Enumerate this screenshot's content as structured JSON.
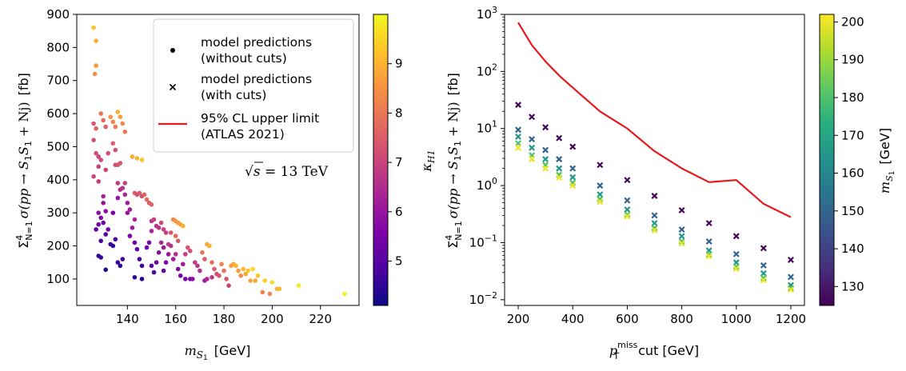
{
  "chart_data": [
    {
      "type": "scatter",
      "xlabel": "m_{S1}  [GeV]",
      "xlabel_parts": {
        "main": "m",
        "sub": "S",
        "subsub": "1",
        "unit": "[GeV]"
      },
      "ylabel": "Σ⁴_{N=1} σ(pp → S1S1 + Nj)  [fb]",
      "ylabel_parts": {
        "sigma": "Σ",
        "sup": "4",
        "sub": "N=1",
        "body": "σ(pp → S",
        "one": "1",
        "S": "S",
        "tail": " + Nj)",
        "unit": "[fb]"
      },
      "xlim": [
        119,
        236
      ],
      "ylim": [
        20,
        900
      ],
      "xticks": [
        140,
        160,
        180,
        200,
        220
      ],
      "yticks": [
        100,
        200,
        300,
        400,
        500,
        600,
        700,
        800,
        900
      ],
      "colorbar": {
        "label": "κH1",
        "label_main": "κ",
        "label_sub": "H1",
        "range": [
          4.1,
          10.0
        ],
        "ticks": [
          5,
          6,
          7,
          8,
          9
        ],
        "colormap": "plasma"
      },
      "annotation": {
        "root": "√",
        "s": "s",
        "rest": " = 13 TeV"
      },
      "legend": {
        "position": "top-right",
        "entries": [
          {
            "marker": "dot",
            "line1": "model predictions",
            "line2": "(without cuts)"
          },
          {
            "marker": "cross",
            "line1": "model predictions",
            "line2": "(with cuts)"
          },
          {
            "marker": "line",
            "color": "#e41a1c",
            "line1": "95% CL upper limit",
            "line2": "(ATLAS 2021)"
          }
        ]
      },
      "points": [
        {
          "x": 126,
          "y": 860,
          "k": 9.2
        },
        {
          "x": 127,
          "y": 820,
          "k": 9.0
        },
        {
          "x": 127,
          "y": 745,
          "k": 8.6
        },
        {
          "x": 126.5,
          "y": 720,
          "k": 8.4
        },
        {
          "x": 126,
          "y": 570,
          "k": 7.4
        },
        {
          "x": 127,
          "y": 555,
          "k": 7.6
        },
        {
          "x": 126,
          "y": 520,
          "k": 7.3
        },
        {
          "x": 127,
          "y": 480,
          "k": 7.2
        },
        {
          "x": 128,
          "y": 470,
          "k": 7.0
        },
        {
          "x": 129,
          "y": 600,
          "k": 8.0
        },
        {
          "x": 130,
          "y": 580,
          "k": 7.8
        },
        {
          "x": 131,
          "y": 560,
          "k": 7.5
        },
        {
          "x": 129,
          "y": 460,
          "k": 7.1
        },
        {
          "x": 128,
          "y": 440,
          "k": 6.9
        },
        {
          "x": 126,
          "y": 410,
          "k": 7.0
        },
        {
          "x": 128,
          "y": 395,
          "k": 6.8
        },
        {
          "x": 131,
          "y": 430,
          "k": 7.0
        },
        {
          "x": 133,
          "y": 590,
          "k": 8.5
        },
        {
          "x": 134,
          "y": 575,
          "k": 8.3
        },
        {
          "x": 135,
          "y": 560,
          "k": 8.1
        },
        {
          "x": 136,
          "y": 605,
          "k": 8.9
        },
        {
          "x": 137,
          "y": 590,
          "k": 8.6
        },
        {
          "x": 138,
          "y": 570,
          "k": 8.3
        },
        {
          "x": 139,
          "y": 545,
          "k": 8.0
        },
        {
          "x": 134,
          "y": 510,
          "k": 7.5
        },
        {
          "x": 135,
          "y": 490,
          "k": 7.3
        },
        {
          "x": 132,
          "y": 480,
          "k": 7.2
        },
        {
          "x": 130,
          "y": 350,
          "k": 6.3
        },
        {
          "x": 130,
          "y": 330,
          "k": 6.0
        },
        {
          "x": 131,
          "y": 305,
          "k": 5.9
        },
        {
          "x": 128,
          "y": 300,
          "k": 5.8
        },
        {
          "x": 129,
          "y": 285,
          "k": 5.5
        },
        {
          "x": 128,
          "y": 265,
          "k": 5.3
        },
        {
          "x": 127,
          "y": 250,
          "k": 5.2
        },
        {
          "x": 130,
          "y": 270,
          "k": 5.4
        },
        {
          "x": 129,
          "y": 215,
          "k": 4.8
        },
        {
          "x": 131,
          "y": 235,
          "k": 5.0
        },
        {
          "x": 132,
          "y": 250,
          "k": 5.4
        },
        {
          "x": 128,
          "y": 170,
          "k": 4.5
        },
        {
          "x": 129,
          "y": 165,
          "k": 4.6
        },
        {
          "x": 131,
          "y": 128,
          "k": 4.3
        },
        {
          "x": 133,
          "y": 205,
          "k": 4.7
        },
        {
          "x": 134,
          "y": 200,
          "k": 4.5
        },
        {
          "x": 135,
          "y": 220,
          "k": 4.9
        },
        {
          "x": 136,
          "y": 150,
          "k": 4.6
        },
        {
          "x": 137,
          "y": 140,
          "k": 4.4
        },
        {
          "x": 138,
          "y": 160,
          "k": 4.7
        },
        {
          "x": 134,
          "y": 300,
          "k": 5.5
        },
        {
          "x": 136,
          "y": 345,
          "k": 6.0
        },
        {
          "x": 135,
          "y": 445,
          "k": 7.2
        },
        {
          "x": 136,
          "y": 445,
          "k": 7.3
        },
        {
          "x": 137,
          "y": 450,
          "k": 7.4
        },
        {
          "x": 136,
          "y": 390,
          "k": 6.8
        },
        {
          "x": 137,
          "y": 370,
          "k": 6.5
        },
        {
          "x": 138,
          "y": 375,
          "k": 6.6
        },
        {
          "x": 139,
          "y": 390,
          "k": 6.9
        },
        {
          "x": 139,
          "y": 355,
          "k": 6.4
        },
        {
          "x": 140,
          "y": 330,
          "k": 6.1
        },
        {
          "x": 140,
          "y": 300,
          "k": 6.0
        },
        {
          "x": 141,
          "y": 310,
          "k": 6.2
        },
        {
          "x": 142,
          "y": 470,
          "k": 8.8
        },
        {
          "x": 144,
          "y": 465,
          "k": 9.0
        },
        {
          "x": 143,
          "y": 360,
          "k": 7.5
        },
        {
          "x": 144,
          "y": 355,
          "k": 7.3
        },
        {
          "x": 145,
          "y": 360,
          "k": 7.4
        },
        {
          "x": 146,
          "y": 350,
          "k": 7.3
        },
        {
          "x": 147,
          "y": 355,
          "k": 7.6
        },
        {
          "x": 148,
          "y": 340,
          "k": 7.7
        },
        {
          "x": 149,
          "y": 330,
          "k": 7.5
        },
        {
          "x": 150,
          "y": 325,
          "k": 7.6
        },
        {
          "x": 146,
          "y": 460,
          "k": 9.3
        },
        {
          "x": 143,
          "y": 280,
          "k": 6.4
        },
        {
          "x": 142,
          "y": 255,
          "k": 6.1
        },
        {
          "x": 141,
          "y": 230,
          "k": 5.6
        },
        {
          "x": 143,
          "y": 210,
          "k": 5.3
        },
        {
          "x": 144,
          "y": 190,
          "k": 5.1
        },
        {
          "x": 145,
          "y": 160,
          "k": 4.9
        },
        {
          "x": 146,
          "y": 140,
          "k": 4.6
        },
        {
          "x": 143,
          "y": 105,
          "k": 4.5
        },
        {
          "x": 146,
          "y": 100,
          "k": 4.4
        },
        {
          "x": 148,
          "y": 195,
          "k": 5.4
        },
        {
          "x": 149,
          "y": 210,
          "k": 5.6
        },
        {
          "x": 150,
          "y": 245,
          "k": 6.3
        },
        {
          "x": 150,
          "y": 275,
          "k": 6.7
        },
        {
          "x": 151,
          "y": 280,
          "k": 6.9
        },
        {
          "x": 152,
          "y": 260,
          "k": 6.6
        },
        {
          "x": 153,
          "y": 255,
          "k": 6.7
        },
        {
          "x": 154,
          "y": 270,
          "k": 7.2
        },
        {
          "x": 155,
          "y": 250,
          "k": 7.0
        },
        {
          "x": 156,
          "y": 240,
          "k": 6.9
        },
        {
          "x": 154,
          "y": 210,
          "k": 6.4
        },
        {
          "x": 155,
          "y": 195,
          "k": 6.1
        },
        {
          "x": 153,
          "y": 180,
          "k": 5.8
        },
        {
          "x": 152,
          "y": 150,
          "k": 5.3
        },
        {
          "x": 151,
          "y": 120,
          "k": 4.9
        },
        {
          "x": 150,
          "y": 140,
          "k": 5.0
        },
        {
          "x": 155,
          "y": 125,
          "k": 5.1
        },
        {
          "x": 156,
          "y": 150,
          "k": 5.6
        },
        {
          "x": 157,
          "y": 175,
          "k": 6.0
        },
        {
          "x": 157,
          "y": 205,
          "k": 6.7
        },
        {
          "x": 158,
          "y": 200,
          "k": 6.6
        },
        {
          "x": 158,
          "y": 240,
          "k": 7.4
        },
        {
          "x": 159,
          "y": 280,
          "k": 8.3
        },
        {
          "x": 160,
          "y": 275,
          "k": 8.5
        },
        {
          "x": 161,
          "y": 270,
          "k": 8.6
        },
        {
          "x": 162,
          "y": 265,
          "k": 8.7
        },
        {
          "x": 163,
          "y": 260,
          "k": 9.0
        },
        {
          "x": 160,
          "y": 230,
          "k": 7.8
        },
        {
          "x": 161,
          "y": 215,
          "k": 7.4
        },
        {
          "x": 160,
          "y": 175,
          "k": 6.5
        },
        {
          "x": 159,
          "y": 160,
          "k": 6.2
        },
        {
          "x": 161,
          "y": 130,
          "k": 5.7
        },
        {
          "x": 162,
          "y": 110,
          "k": 5.4
        },
        {
          "x": 163,
          "y": 145,
          "k": 6.1
        },
        {
          "x": 164,
          "y": 175,
          "k": 6.8
        },
        {
          "x": 165,
          "y": 195,
          "k": 7.3
        },
        {
          "x": 166,
          "y": 185,
          "k": 7.2
        },
        {
          "x": 164,
          "y": 100,
          "k": 5.5
        },
        {
          "x": 166,
          "y": 100,
          "k": 5.6
        },
        {
          "x": 167,
          "y": 100,
          "k": 5.8
        },
        {
          "x": 168,
          "y": 150,
          "k": 6.8
        },
        {
          "x": 169,
          "y": 140,
          "k": 6.7
        },
        {
          "x": 170,
          "y": 125,
          "k": 6.5
        },
        {
          "x": 171,
          "y": 180,
          "k": 7.9
        },
        {
          "x": 172,
          "y": 160,
          "k": 7.5
        },
        {
          "x": 173,
          "y": 205,
          "k": 8.8
        },
        {
          "x": 174,
          "y": 200,
          "k": 9.0
        },
        {
          "x": 172,
          "y": 95,
          "k": 6.2
        },
        {
          "x": 173,
          "y": 100,
          "k": 6.4
        },
        {
          "x": 175,
          "y": 105,
          "k": 6.7
        },
        {
          "x": 175,
          "y": 150,
          "k": 7.9
        },
        {
          "x": 176,
          "y": 130,
          "k": 7.5
        },
        {
          "x": 177,
          "y": 115,
          "k": 7.2
        },
        {
          "x": 178,
          "y": 110,
          "k": 7.3
        },
        {
          "x": 179,
          "y": 145,
          "k": 8.2
        },
        {
          "x": 180,
          "y": 125,
          "k": 7.9
        },
        {
          "x": 181,
          "y": 100,
          "k": 7.4
        },
        {
          "x": 182,
          "y": 80,
          "k": 7.0
        },
        {
          "x": 183,
          "y": 140,
          "k": 8.6
        },
        {
          "x": 184,
          "y": 145,
          "k": 8.8
        },
        {
          "x": 185,
          "y": 140,
          "k": 9.0
        },
        {
          "x": 186,
          "y": 125,
          "k": 8.7
        },
        {
          "x": 187,
          "y": 110,
          "k": 8.4
        },
        {
          "x": 188,
          "y": 130,
          "k": 9.1
        },
        {
          "x": 189,
          "y": 115,
          "k": 8.8
        },
        {
          "x": 190,
          "y": 125,
          "k": 9.3
        },
        {
          "x": 191,
          "y": 95,
          "k": 8.7
        },
        {
          "x": 192,
          "y": 130,
          "k": 9.5
        },
        {
          "x": 193,
          "y": 95,
          "k": 8.8
        },
        {
          "x": 194,
          "y": 110,
          "k": 9.3
        },
        {
          "x": 196,
          "y": 60,
          "k": 8.2
        },
        {
          "x": 197,
          "y": 95,
          "k": 9.4
        },
        {
          "x": 200,
          "y": 90,
          "k": 9.6
        },
        {
          "x": 199,
          "y": 55,
          "k": 8.3
        },
        {
          "x": 202,
          "y": 70,
          "k": 9.0
        },
        {
          "x": 203,
          "y": 70,
          "k": 9.1
        },
        {
          "x": 211,
          "y": 80,
          "k": 9.8
        },
        {
          "x": 230,
          "y": 55,
          "k": 9.9
        }
      ]
    },
    {
      "type": "scatter-log",
      "xlabel": "p_T^miss cut  [GeV]",
      "xlabel_parts": {
        "main": "p",
        "sup": "miss",
        "sub": "T",
        "unit": "cut  [GeV]"
      },
      "ylabel": "Σ⁴_{N=1} σ(pp → S1S1 + Nj)  [fb]",
      "xlim": [
        150,
        1250
      ],
      "ylim_log10": [
        -2.1,
        3.0
      ],
      "xticks": [
        200,
        400,
        600,
        800,
        1000,
        1200
      ],
      "yticks_exponents": [
        -2,
        -1,
        0,
        1,
        2,
        3
      ],
      "ytick_base": "10",
      "colorbar": {
        "label": "mS1  [GeV]",
        "label_main": "m",
        "label_sub": "S",
        "label_subsub": "1",
        "label_unit": "[GeV]",
        "range": [
          125,
          202
        ],
        "ticks": [
          130,
          140,
          150,
          160,
          170,
          180,
          190,
          200
        ],
        "colormap": "viridis"
      },
      "limit_line": {
        "name": "95% CL upper limit (ATLAS 2021)",
        "color": "#e41a1c",
        "x": [
          200,
          250,
          300,
          350,
          400,
          500,
          600,
          700,
          800,
          900,
          1000,
          1100,
          1200
        ],
        "y": [
          720,
          290,
          150,
          85,
          52,
          20,
          10,
          4.0,
          2.0,
          1.15,
          1.25,
          0.48,
          0.28
        ]
      },
      "cuts": [
        200,
        250,
        300,
        350,
        400,
        500,
        600,
        700,
        800,
        900,
        1000,
        1100,
        1200
      ],
      "series": [
        {
          "m": 126,
          "values": [
            26,
            16,
            10.5,
            6.8,
            4.8,
            2.3,
            1.25,
            0.66,
            0.37,
            0.22,
            0.13,
            0.08,
            0.05
          ]
        },
        {
          "m": 150,
          "values": [
            9.5,
            6.5,
            4.2,
            2.9,
            2.0,
            1.0,
            0.55,
            0.3,
            0.17,
            0.105,
            0.063,
            0.04,
            0.025
          ]
        },
        {
          "m": 165,
          "values": [
            7.2,
            4.6,
            2.9,
            2.0,
            1.4,
            0.7,
            0.38,
            0.22,
            0.13,
            0.073,
            0.045,
            0.029,
            0.018
          ]
        },
        {
          "m": 180,
          "values": [
            5.5,
            3.4,
            2.3,
            1.55,
            1.12,
            0.58,
            0.31,
            0.18,
            0.105,
            0.062,
            0.038,
            0.024,
            0.016
          ]
        },
        {
          "m": 200,
          "values": [
            4.6,
            2.9,
            2.0,
            1.38,
            1.0,
            0.52,
            0.29,
            0.165,
            0.097,
            0.058,
            0.035,
            0.022,
            0.015
          ]
        }
      ]
    }
  ]
}
